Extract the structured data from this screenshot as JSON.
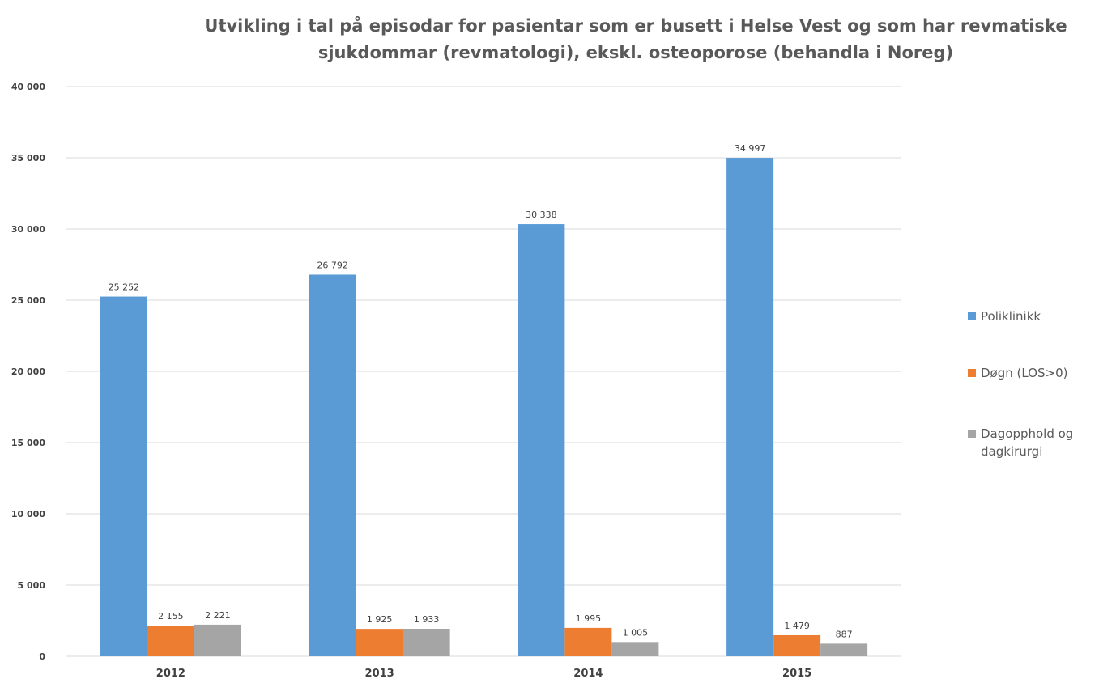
{
  "chart_data": {
    "type": "bar",
    "title": "Utvikling i tal på episodar for pasientar som er busett i Helse Vest og som har revmatiske sjukdommar (revmatologi), ekskl. osteoporose (behandla i Noreg)",
    "categories": [
      "2012",
      "2013",
      "2014",
      "2015"
    ],
    "series": [
      {
        "name": "Poliklinikk",
        "color": "#5b9bd5",
        "values": [
          25252,
          26792,
          30338,
          34997
        ],
        "labels": [
          "25 252",
          "26 792",
          "30 338",
          "34 997"
        ]
      },
      {
        "name": "Døgn (LOS>0)",
        "color": "#ed7d31",
        "values": [
          2155,
          1925,
          1995,
          1479
        ],
        "labels": [
          "2 155",
          "1 925",
          "1 995",
          "1 479"
        ]
      },
      {
        "name": "Dagopphold og dagkirurgi",
        "color": "#a5a5a5",
        "values": [
          2221,
          1933,
          1005,
          887
        ],
        "labels": [
          "2 221",
          "1 933",
          "1 005",
          "887"
        ]
      }
    ],
    "ylim": [
      0,
      40000
    ],
    "yticks": [
      0,
      5000,
      10000,
      15000,
      20000,
      25000,
      30000,
      35000,
      40000
    ],
    "ytick_labels": [
      "0",
      "5 000",
      "10 000",
      "15 000",
      "20 000",
      "25 000",
      "30 000",
      "35 000",
      "40 000"
    ],
    "xlabel": "",
    "ylabel": "",
    "grid": true,
    "legend_position": "right",
    "colors": {
      "gridline": "#d9d9d9",
      "axis_text": "#404040",
      "title_text": "#595959"
    }
  }
}
